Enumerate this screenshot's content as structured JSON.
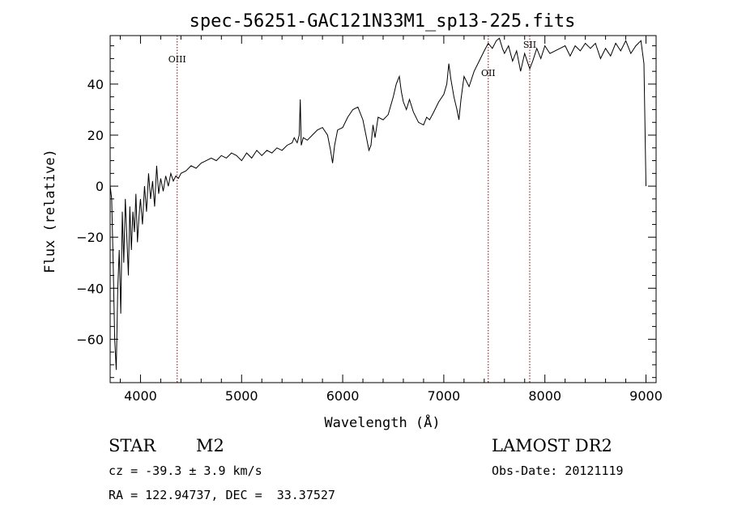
{
  "chart_data": {
    "type": "line",
    "title": "spec-56251-GAC121N33M1_sp13-225.fits",
    "xlabel": "Wavelength (Å)",
    "ylabel": "Flux (relative)",
    "xlim": [
      3700,
      9100
    ],
    "ylim": [
      -77,
      59
    ],
    "xticks": [
      4000,
      5000,
      6000,
      7000,
      8000,
      9000
    ],
    "yticks": [
      -60,
      -40,
      -20,
      0,
      20,
      40
    ],
    "grid": false,
    "series": [
      {
        "color": "#000000",
        "x": [
          3700,
          3715,
          3730,
          3745,
          3760,
          3775,
          3790,
          3805,
          3820,
          3835,
          3850,
          3865,
          3880,
          3895,
          3910,
          3925,
          3940,
          3955,
          3970,
          3985,
          4000,
          4020,
          4040,
          4060,
          4080,
          4100,
          4120,
          4140,
          4160,
          4180,
          4200,
          4225,
          4250,
          4275,
          4300,
          4325,
          4350,
          4375,
          4400,
          4450,
          4500,
          4550,
          4600,
          4650,
          4700,
          4750,
          4800,
          4850,
          4900,
          4950,
          5000,
          5050,
          5100,
          5150,
          5200,
          5250,
          5300,
          5350,
          5400,
          5450,
          5500,
          5520,
          5550,
          5570,
          5580,
          5590,
          5610,
          5650,
          5700,
          5750,
          5800,
          5850,
          5880,
          5900,
          5920,
          5950,
          6000,
          6050,
          6100,
          6150,
          6200,
          6230,
          6260,
          6280,
          6300,
          6320,
          6350,
          6400,
          6450,
          6500,
          6530,
          6560,
          6580,
          6600,
          6630,
          6660,
          6700,
          6750,
          6800,
          6830,
          6860,
          6900,
          6950,
          7000,
          7030,
          7050,
          7070,
          7100,
          7130,
          7150,
          7170,
          7200,
          7250,
          7300,
          7350,
          7400,
          7440,
          7480,
          7520,
          7550,
          7580,
          7600,
          7640,
          7680,
          7720,
          7760,
          7800,
          7850,
          7880,
          7920,
          7960,
          8000,
          8050,
          8100,
          8150,
          8200,
          8250,
          8300,
          8350,
          8400,
          8450,
          8500,
          8550,
          8600,
          8650,
          8700,
          8750,
          8800,
          8850,
          8900,
          8950,
          8980,
          9000
        ],
        "y": [
          0,
          -5,
          -30,
          -60,
          -72,
          -40,
          -25,
          -50,
          -10,
          -30,
          -5,
          -20,
          -35,
          -8,
          -25,
          -10,
          -18,
          -3,
          -22,
          -12,
          -5,
          -15,
          0,
          -10,
          5,
          -5,
          2,
          -8,
          8,
          -3,
          3,
          -2,
          4,
          0,
          5,
          2,
          4,
          3,
          5,
          6,
          8,
          7,
          9,
          10,
          11,
          10,
          12,
          11,
          13,
          12,
          10,
          13,
          11,
          14,
          12,
          14,
          13,
          15,
          14,
          16,
          17,
          19,
          17,
          20,
          34,
          16,
          19,
          18,
          20,
          22,
          23,
          20,
          14,
          9,
          16,
          22,
          23,
          27,
          30,
          31,
          26,
          20,
          14,
          16,
          24,
          19,
          27,
          26,
          28,
          35,
          40,
          43,
          37,
          33,
          30,
          34,
          29,
          25,
          24,
          27,
          26,
          29,
          33,
          36,
          40,
          48,
          42,
          35,
          30,
          26,
          34,
          43,
          39,
          45,
          49,
          53,
          56,
          54,
          57,
          58,
          54,
          52,
          55,
          49,
          53,
          45,
          52,
          46,
          49,
          54,
          50,
          55,
          52,
          53,
          54,
          55,
          51,
          55,
          53,
          56,
          54,
          56,
          50,
          54,
          51,
          56,
          53,
          57,
          52,
          55,
          57,
          48,
          0
        ]
      }
    ],
    "annotations": [
      {
        "label": "OIII",
        "x": 4363
      },
      {
        "label": "OII",
        "x": 7440
      },
      {
        "label": "SII",
        "x": 7850
      }
    ]
  },
  "info": {
    "class_label": "STAR",
    "subclass": "M2",
    "survey": "LAMOST DR2",
    "cz": "cz = -39.3 ± 3.9 km/s",
    "obs_date": "Obs-Date: 20121119",
    "coords": "RA = 122.94737, DEC =  33.37527"
  },
  "colors": {
    "line": "#000000",
    "annotation": "#8b0000"
  }
}
